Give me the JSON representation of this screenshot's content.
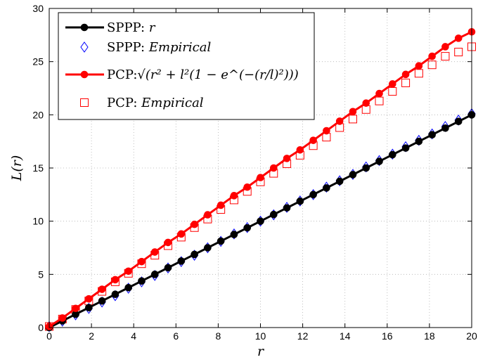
{
  "chart_data": {
    "type": "line",
    "xlabel": "r",
    "ylabel": "L(r)",
    "xlim": [
      0,
      20
    ],
    "ylim": [
      0,
      30
    ],
    "xticks": [
      "0",
      "2",
      "4",
      "6",
      "8",
      "10",
      "12",
      "14",
      "16",
      "18",
      "20"
    ],
    "yticks": [
      "0",
      "5",
      "10",
      "15",
      "20",
      "25",
      "30"
    ],
    "grid": true,
    "legend_position": "top-left",
    "x": [
      0,
      0.625,
      1.25,
      1.875,
      2.5,
      3.125,
      3.75,
      4.375,
      5,
      5.625,
      6.25,
      6.875,
      7.5,
      8.125,
      8.75,
      9.375,
      10,
      10.625,
      11.25,
      11.875,
      12.5,
      13.125,
      13.75,
      14.375,
      15,
      15.625,
      16.25,
      16.875,
      17.5,
      18.125,
      18.75,
      19.375,
      20
    ],
    "series": [
      {
        "name": "SPPP: r",
        "legend_prefix": "SPPP: ",
        "legend_math": "r",
        "style": "line-marker",
        "marker": "circle",
        "color": "#000000",
        "values": [
          0,
          0.625,
          1.25,
          1.875,
          2.5,
          3.125,
          3.75,
          4.375,
          5,
          5.625,
          6.25,
          6.875,
          7.5,
          8.125,
          8.75,
          9.375,
          10,
          10.625,
          11.25,
          11.875,
          12.5,
          13.125,
          13.75,
          14.375,
          15,
          15.625,
          16.25,
          16.875,
          17.5,
          18.125,
          18.75,
          19.375,
          20
        ]
      },
      {
        "name": "SPPP: Empirical",
        "legend_prefix": "SPPP: ",
        "legend_math": "Empirical",
        "style": "marker",
        "marker": "diamond",
        "color": "#0000ff",
        "values": [
          0.1,
          0.6,
          1.2,
          1.8,
          2.4,
          3.0,
          3.7,
          4.3,
          4.9,
          5.6,
          6.2,
          6.8,
          7.5,
          8.1,
          8.8,
          9.4,
          10.0,
          10.6,
          11.3,
          11.9,
          12.5,
          13.2,
          13.8,
          14.4,
          15.1,
          15.7,
          16.3,
          17.0,
          17.6,
          18.2,
          18.9,
          19.5,
          20.1
        ]
      },
      {
        "name": "PCP",
        "legend_prefix": "PCP:",
        "legend_math": "√(r² + l²(1 − e^(−(r/l)²)))",
        "style": "line-marker",
        "marker": "circle",
        "color": "#ff0000",
        "values": [
          0.1,
          0.9,
          1.8,
          2.7,
          3.6,
          4.5,
          5.3,
          6.2,
          7.1,
          8.0,
          8.8,
          9.7,
          10.6,
          11.5,
          12.4,
          13.2,
          14.1,
          15.0,
          15.9,
          16.7,
          17.6,
          18.5,
          19.4,
          20.3,
          21.1,
          22.0,
          22.9,
          23.8,
          24.6,
          25.5,
          26.4,
          27.2,
          27.8
        ]
      },
      {
        "name": "PCP: Empirical",
        "legend_prefix": "PCP: ",
        "legend_math": "Empirical",
        "style": "marker",
        "marker": "square",
        "color": "#ff0000",
        "values": [
          0.1,
          0.8,
          1.7,
          2.5,
          3.4,
          4.3,
          5.1,
          6.0,
          6.8,
          7.7,
          8.5,
          9.4,
          10.2,
          11.1,
          12.0,
          12.8,
          13.7,
          14.5,
          15.4,
          16.2,
          17.1,
          17.9,
          18.8,
          19.6,
          20.5,
          21.3,
          22.2,
          23.0,
          23.9,
          24.7,
          25.5,
          25.9,
          26.4
        ]
      }
    ]
  }
}
